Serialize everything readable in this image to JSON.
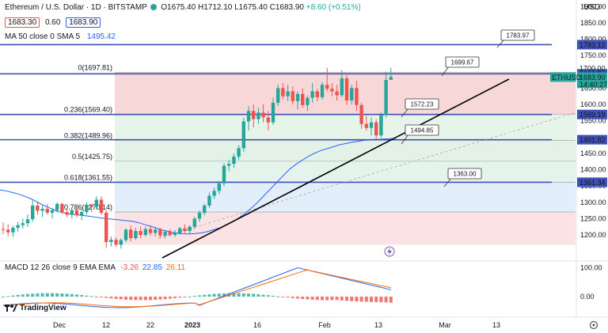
{
  "header": {
    "symbol": "Ethereum / U.S. Dollar · 1D · BITSTAMP",
    "ohlc": {
      "o": "O1675.40",
      "h": "H1712.10",
      "l": "L1675.40",
      "c": "C1683.90",
      "chg": "+8.60 (+0.51%)"
    },
    "bid": "1683.30",
    "spread": "0.60",
    "ask": "1683.90",
    "ma_label": "MA 50 close 0 SMA 5",
    "ma_value": "1495.42",
    "currency": "USD",
    "macd_label": "MACD 12 26 close 9 EMA EMA",
    "macd_vals": [
      "-3.26",
      "22.85",
      "26.11"
    ],
    "logo": "TradingView"
  },
  "colors": {
    "up": "#26a69a",
    "down": "#ef5350",
    "blue": "#3f51b5",
    "ma": "#2962ff",
    "black": "#000000"
  },
  "chart_data": {
    "type": "candlestick",
    "symbol": "ETHUSD",
    "price_range": [
      1120,
      1920
    ],
    "x_ticks": [
      "Dec",
      "12",
      "22",
      "2023",
      "16",
      "Feb",
      "13",
      "Mar",
      "13"
    ],
    "y_ticks": [
      "1900.00",
      "1850.00",
      "1800.00",
      "1750.00",
      "1650.00",
      "1600.00",
      "1550.00",
      "1450.00",
      "1400.00",
      "1350.00",
      "1300.00",
      "1250.00",
      "1200.00"
    ],
    "horizontal_levels": [
      {
        "price": 1783.12,
        "label": "1783.12"
      },
      {
        "price": 1693.74,
        "label": "1693.74"
      },
      {
        "price": 1569.19,
        "label": "1569.19"
      },
      {
        "price": 1491.82,
        "label": "1491.82"
      },
      {
        "price": 1361.34,
        "label": "1361.34"
      }
    ],
    "current_price": {
      "symbol": "ETHUSD",
      "price": "1683.90",
      "countdown": "14:40:27",
      "axis_label_behind": "1700.00"
    },
    "fibonacci": [
      {
        "ratio": "0",
        "price": 1697.81,
        "label": "0(1697.81)"
      },
      {
        "ratio": "0.236",
        "price": 1569.4,
        "label": "0.236(1569.40)"
      },
      {
        "ratio": "0.382",
        "price": 1489.96,
        "label": "0.382(1489.96)"
      },
      {
        "ratio": "0.5",
        "price": 1425.75,
        "label": "0.5(1425.75)"
      },
      {
        "ratio": "0.618",
        "price": 1361.55,
        "label": "0.618(1361.55)"
      },
      {
        "ratio": "0.786",
        "price": 1270.14,
        "label": "0.786(1270.14)"
      }
    ],
    "callouts": [
      {
        "price": 1783.97,
        "label": "1783.97"
      },
      {
        "price": 1699.67,
        "label": "1699.67"
      },
      {
        "price": 1572.23,
        "label": "1572.23"
      },
      {
        "price": 1494.85,
        "label": "1494.85"
      },
      {
        "price": 1363.0,
        "label": "1363.00"
      }
    ],
    "trendline": {
      "from": [
        1180,
        "2022-12-23"
      ],
      "to": [
        1690,
        "2023-02-27"
      ]
    },
    "candles_ohlc": [
      [
        1218,
        1238,
        1202,
        1216
      ],
      [
        1216,
        1232,
        1196,
        1208
      ],
      [
        1208,
        1228,
        1194,
        1222
      ],
      [
        1222,
        1240,
        1210,
        1230
      ],
      [
        1230,
        1250,
        1220,
        1236
      ],
      [
        1236,
        1262,
        1225,
        1248
      ],
      [
        1248,
        1305,
        1240,
        1290
      ],
      [
        1290,
        1300,
        1262,
        1274
      ],
      [
        1274,
        1290,
        1255,
        1280
      ],
      [
        1280,
        1295,
        1262,
        1268
      ],
      [
        1268,
        1282,
        1250,
        1276
      ],
      [
        1276,
        1300,
        1268,
        1295
      ],
      [
        1295,
        1298,
        1265,
        1270
      ],
      [
        1270,
        1282,
        1255,
        1262
      ],
      [
        1262,
        1280,
        1250,
        1276
      ],
      [
        1276,
        1288,
        1255,
        1260
      ],
      [
        1260,
        1278,
        1245,
        1270
      ],
      [
        1270,
        1300,
        1262,
        1292
      ],
      [
        1292,
        1296,
        1270,
        1286
      ],
      [
        1286,
        1318,
        1278,
        1308
      ],
      [
        1308,
        1318,
        1262,
        1268
      ],
      [
        1268,
        1276,
        1160,
        1178
      ],
      [
        1178,
        1195,
        1165,
        1185
      ],
      [
        1185,
        1192,
        1164,
        1170
      ],
      [
        1170,
        1190,
        1158,
        1184
      ],
      [
        1184,
        1220,
        1178,
        1216
      ],
      [
        1216,
        1228,
        1180,
        1190
      ],
      [
        1190,
        1222,
        1185,
        1212
      ],
      [
        1212,
        1225,
        1190,
        1200
      ],
      [
        1200,
        1225,
        1195,
        1218
      ],
      [
        1218,
        1230,
        1198,
        1206
      ],
      [
        1206,
        1225,
        1196,
        1216
      ],
      [
        1216,
        1222,
        1190,
        1198
      ],
      [
        1198,
        1215,
        1190,
        1210
      ],
      [
        1210,
        1218,
        1195,
        1200
      ],
      [
        1200,
        1215,
        1194,
        1206
      ],
      [
        1206,
        1225,
        1200,
        1220
      ],
      [
        1220,
        1232,
        1206,
        1212
      ],
      [
        1212,
        1230,
        1205,
        1225
      ],
      [
        1225,
        1255,
        1218,
        1250
      ],
      [
        1250,
        1275,
        1240,
        1268
      ],
      [
        1268,
        1295,
        1260,
        1290
      ],
      [
        1290,
        1330,
        1282,
        1320
      ],
      [
        1320,
        1345,
        1310,
        1335
      ],
      [
        1335,
        1365,
        1325,
        1358
      ],
      [
        1358,
        1420,
        1350,
        1412
      ],
      [
        1412,
        1430,
        1395,
        1418
      ],
      [
        1418,
        1450,
        1405,
        1440
      ],
      [
        1440,
        1475,
        1430,
        1466
      ],
      [
        1466,
        1560,
        1455,
        1548
      ],
      [
        1548,
        1595,
        1520,
        1580
      ],
      [
        1580,
        1600,
        1530,
        1555
      ],
      [
        1555,
        1590,
        1540,
        1575
      ],
      [
        1575,
        1600,
        1545,
        1560
      ],
      [
        1560,
        1580,
        1520,
        1545
      ],
      [
        1545,
        1620,
        1538,
        1605
      ],
      [
        1605,
        1660,
        1595,
        1650
      ],
      [
        1650,
        1665,
        1615,
        1625
      ],
      [
        1625,
        1660,
        1610,
        1640
      ],
      [
        1640,
        1655,
        1600,
        1610
      ],
      [
        1610,
        1640,
        1585,
        1632
      ],
      [
        1632,
        1650,
        1590,
        1598
      ],
      [
        1598,
        1628,
        1580,
        1620
      ],
      [
        1620,
        1665,
        1605,
        1640
      ],
      [
        1640,
        1648,
        1610,
        1622
      ],
      [
        1622,
        1668,
        1615,
        1660
      ],
      [
        1660,
        1712,
        1640,
        1648
      ],
      [
        1648,
        1665,
        1625,
        1640
      ],
      [
        1640,
        1660,
        1612,
        1628
      ],
      [
        1628,
        1705,
        1622,
        1680
      ],
      [
        1680,
        1690,
        1598,
        1612
      ],
      [
        1612,
        1660,
        1600,
        1650
      ],
      [
        1650,
        1672,
        1580,
        1598
      ],
      [
        1598,
        1605,
        1525,
        1540
      ],
      [
        1540,
        1565,
        1520,
        1528
      ],
      [
        1528,
        1560,
        1505,
        1545
      ],
      [
        1545,
        1555,
        1495,
        1505
      ],
      [
        1505,
        1575,
        1498,
        1568
      ],
      [
        1568,
        1700,
        1560,
        1675
      ],
      [
        1675,
        1712,
        1675,
        1684
      ]
    ],
    "ma_points": [
      1338,
      1335,
      1330,
      1325,
      1318,
      1310,
      1300,
      1290,
      1282,
      1274,
      1268,
      1264,
      1262,
      1260,
      1258,
      1255,
      1252,
      1250,
      1248,
      1246,
      1244,
      1242,
      1238,
      1232,
      1226,
      1220,
      1214,
      1210,
      1206,
      1204,
      1203,
      1204,
      1206,
      1210,
      1216,
      1222,
      1230,
      1240,
      1252,
      1266,
      1282,
      1300,
      1320,
      1340,
      1360,
      1380,
      1400,
      1415,
      1428,
      1440,
      1450,
      1458,
      1464,
      1470,
      1476,
      1480,
      1484,
      1487,
      1490,
      1492,
      1493,
      1494,
      1495,
      1496
    ],
    "macd_range": [
      -60,
      115
    ],
    "macd_ticks": [
      "100.00",
      "0.00"
    ]
  }
}
